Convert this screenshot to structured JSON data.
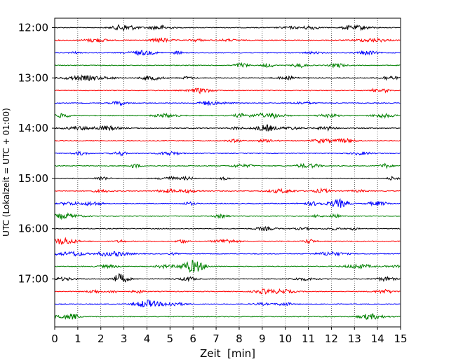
{
  "chart_data": {
    "type": "line",
    "xlabel": "Zeit  [min]",
    "ylabel": "UTC (Lokalzeit = UTC + 01:00)",
    "xlim": [
      0,
      15
    ],
    "x_ticks": [
      0,
      1,
      2,
      3,
      4,
      5,
      6,
      7,
      8,
      9,
      10,
      11,
      12,
      13,
      14,
      15
    ],
    "x_tick_labels": [
      "0",
      "1",
      "2",
      "3",
      "4",
      "5",
      "6",
      "7",
      "8",
      "9",
      "10",
      "11",
      "12",
      "13",
      "14",
      "15"
    ],
    "y_ticks": [
      "12:00",
      "13:00",
      "14:00",
      "15:00",
      "16:00",
      "17:00"
    ],
    "grid": "vertical dotted",
    "trace_interval_min": 15,
    "series": [
      {
        "start": "12:00",
        "color": "#000000"
      },
      {
        "start": "12:15",
        "color": "#ff0000"
      },
      {
        "start": "12:30",
        "color": "#0000ff"
      },
      {
        "start": "12:45",
        "color": "#008000"
      },
      {
        "start": "13:00",
        "color": "#000000"
      },
      {
        "start": "13:15",
        "color": "#ff0000"
      },
      {
        "start": "13:30",
        "color": "#0000ff"
      },
      {
        "start": "13:45",
        "color": "#008000"
      },
      {
        "start": "14:00",
        "color": "#000000"
      },
      {
        "start": "14:15",
        "color": "#ff0000"
      },
      {
        "start": "14:30",
        "color": "#0000ff"
      },
      {
        "start": "14:45",
        "color": "#008000"
      },
      {
        "start": "15:00",
        "color": "#000000"
      },
      {
        "start": "15:15",
        "color": "#ff0000"
      },
      {
        "start": "15:30",
        "color": "#0000ff"
      },
      {
        "start": "15:45",
        "color": "#008000"
      },
      {
        "start": "16:00",
        "color": "#000000"
      },
      {
        "start": "16:15",
        "color": "#ff0000"
      },
      {
        "start": "16:30",
        "color": "#0000ff"
      },
      {
        "start": "16:45",
        "color": "#008000"
      },
      {
        "start": "17:00",
        "color": "#000000"
      },
      {
        "start": "17:15",
        "color": "#ff0000"
      },
      {
        "start": "17:30",
        "color": "#0000ff"
      },
      {
        "start": "17:45",
        "color": "#008000"
      }
    ]
  }
}
